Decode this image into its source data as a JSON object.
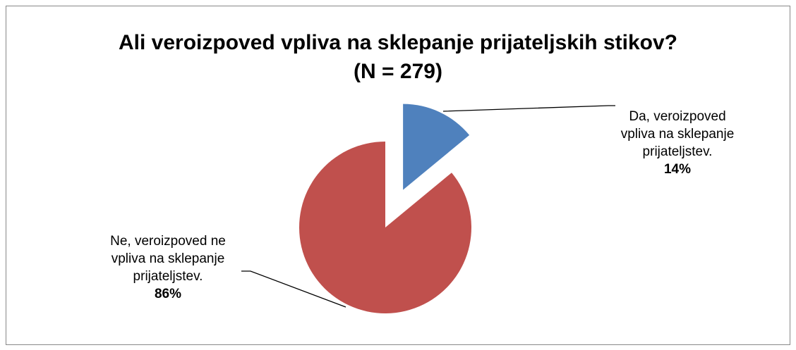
{
  "chart_data": {
    "type": "pie",
    "title": "Ali veroizpoved vpliva na sklepanje prijateljskih stikov?",
    "subtitle": "(N = 279)",
    "categories": [
      "Da, veroizpoved vpliva na sklepanje prijateljstev.",
      "Ne, veroizpoved ne vpliva na sklepanje prijateljstev."
    ],
    "values": [
      14,
      86
    ],
    "value_labels": [
      "14%",
      "86%"
    ],
    "colors": [
      "#4f81bd",
      "#c0504d"
    ],
    "explode": [
      true,
      false
    ]
  }
}
